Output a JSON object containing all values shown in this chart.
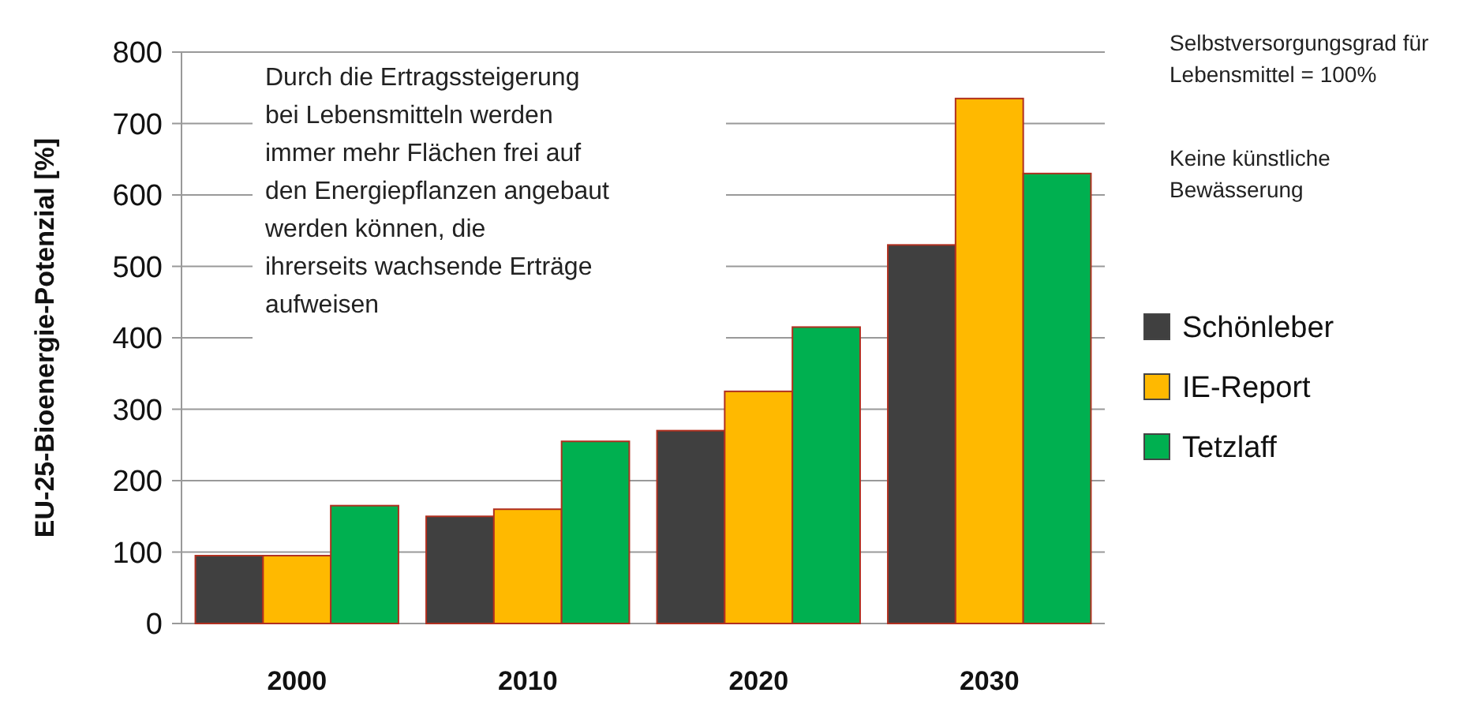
{
  "chart_data": {
    "type": "bar",
    "ylabel": "EU-25-Bioenergie-Potenzial  [%]",
    "categories": [
      "2000",
      "2010",
      "2020",
      "2030"
    ],
    "series": [
      {
        "name": "Schönleber",
        "color": "#404040",
        "values": [
          95,
          150,
          270,
          530
        ]
      },
      {
        "name": "IE-Report",
        "color": "#ffb900",
        "values": [
          95,
          160,
          325,
          735
        ]
      },
      {
        "name": "Tetzlaff",
        "color": "#00b050",
        "values": [
          165,
          255,
          415,
          630
        ]
      }
    ],
    "ylim": [
      0,
      800
    ],
    "yticks": [
      0,
      100,
      200,
      300,
      400,
      500,
      600,
      700,
      800
    ],
    "grid": "y",
    "legend": "right",
    "annotations": [
      "Durch die Ertragssteigerung bei Lebensmitteln werden immer mehr Flächen frei auf den Energiepflanzen angebaut werden können, die ihrerseits wachsende Erträge aufweisen",
      "Selbstversorgungsgrad für Lebensmittel = 100%",
      "Keine künstliche Bewässerung"
    ]
  }
}
